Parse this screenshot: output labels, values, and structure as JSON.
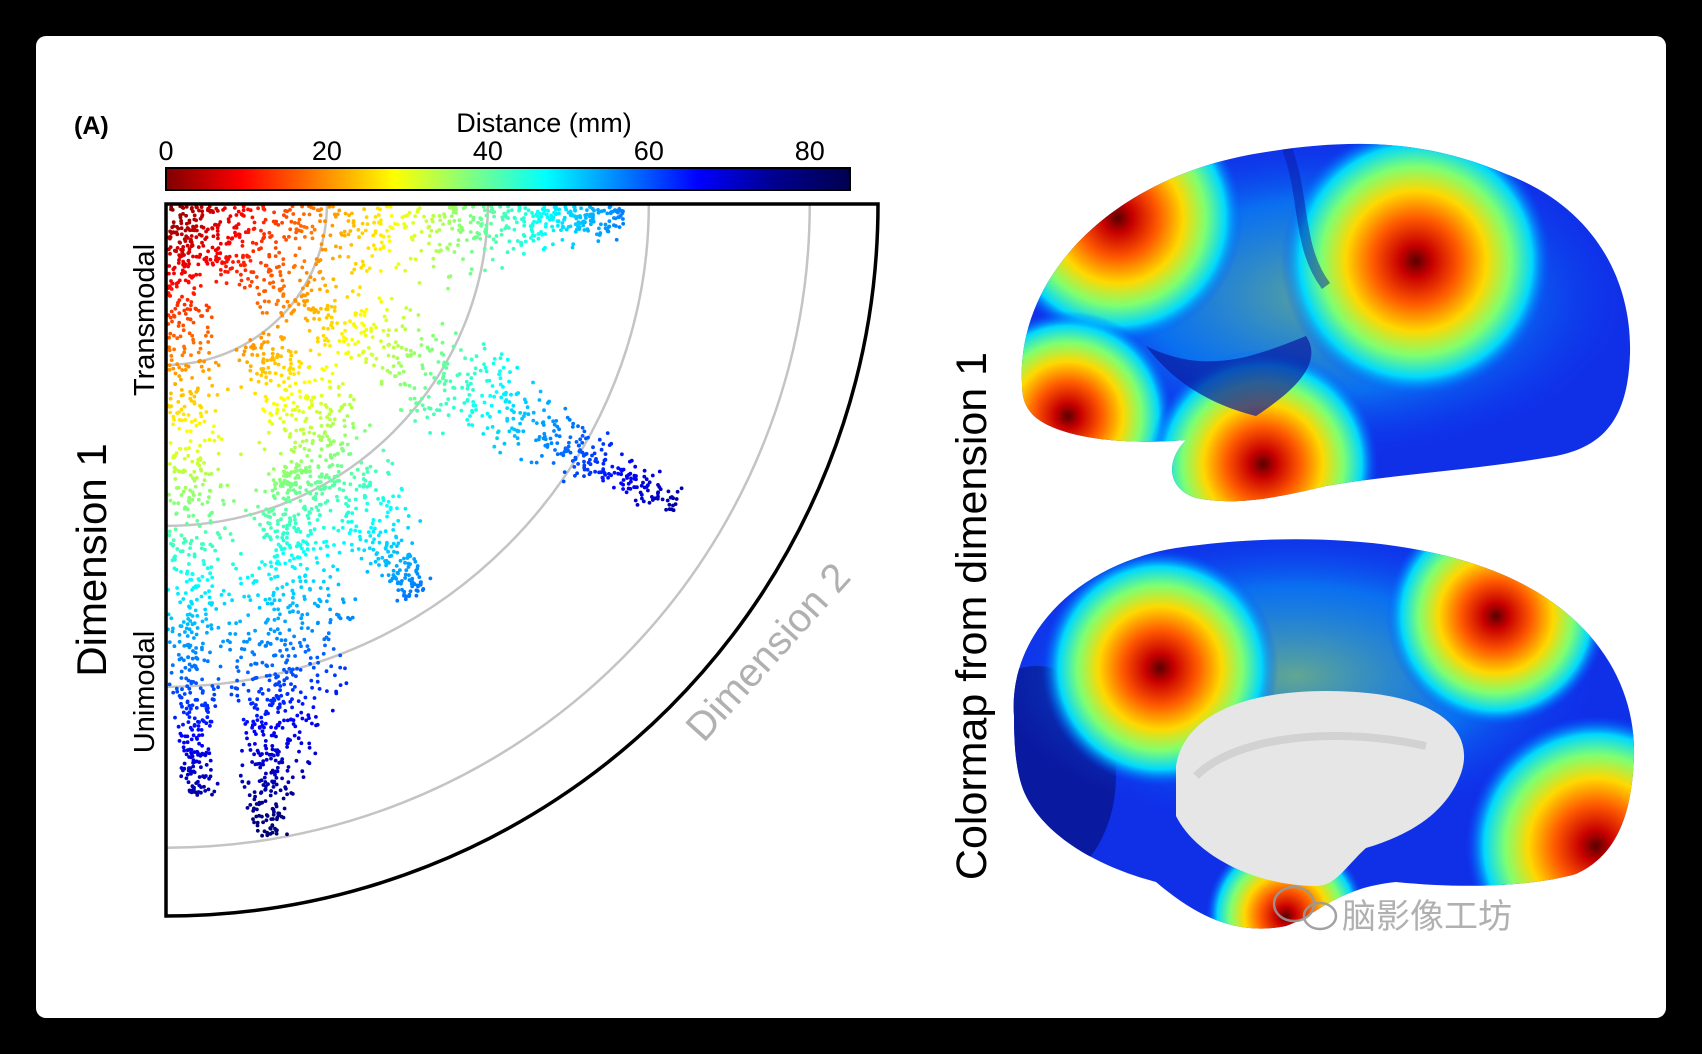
{
  "figure": {
    "panel_label": "(A)",
    "colorbar": {
      "title": "Distance (mm)",
      "ticks": [
        "0",
        "20",
        "40",
        "60",
        "80"
      ],
      "tick_values": [
        0,
        20,
        40,
        60,
        80
      ],
      "range": [
        0,
        85
      ],
      "colormap": "jet",
      "stops": [
        "#7f0000",
        "#ff0000",
        "#ff8000",
        "#ffff00",
        "#80ff80",
        "#00ffff",
        "#0080ff",
        "#0000ff",
        "#00008f",
        "#000050"
      ]
    },
    "y_axis_title": "Dimension 1",
    "y_axis_top_label": "Transmodal",
    "y_axis_bottom_label": "Unimodal",
    "arc_axis_label": "Dimension 2",
    "side_title": "Colormap from dimension 1",
    "watermark": "脑影像工坊"
  },
  "chart_data": {
    "type": "scatter",
    "coordinate_system": "polar quadrant",
    "xlabel": "Dimension 2",
    "ylabel": "Dimension 1",
    "color_variable": "Distance (mm)",
    "color_range": [
      0,
      85
    ],
    "grid_arcs_mm": [
      20,
      40,
      60,
      80
    ],
    "grid": true
  }
}
